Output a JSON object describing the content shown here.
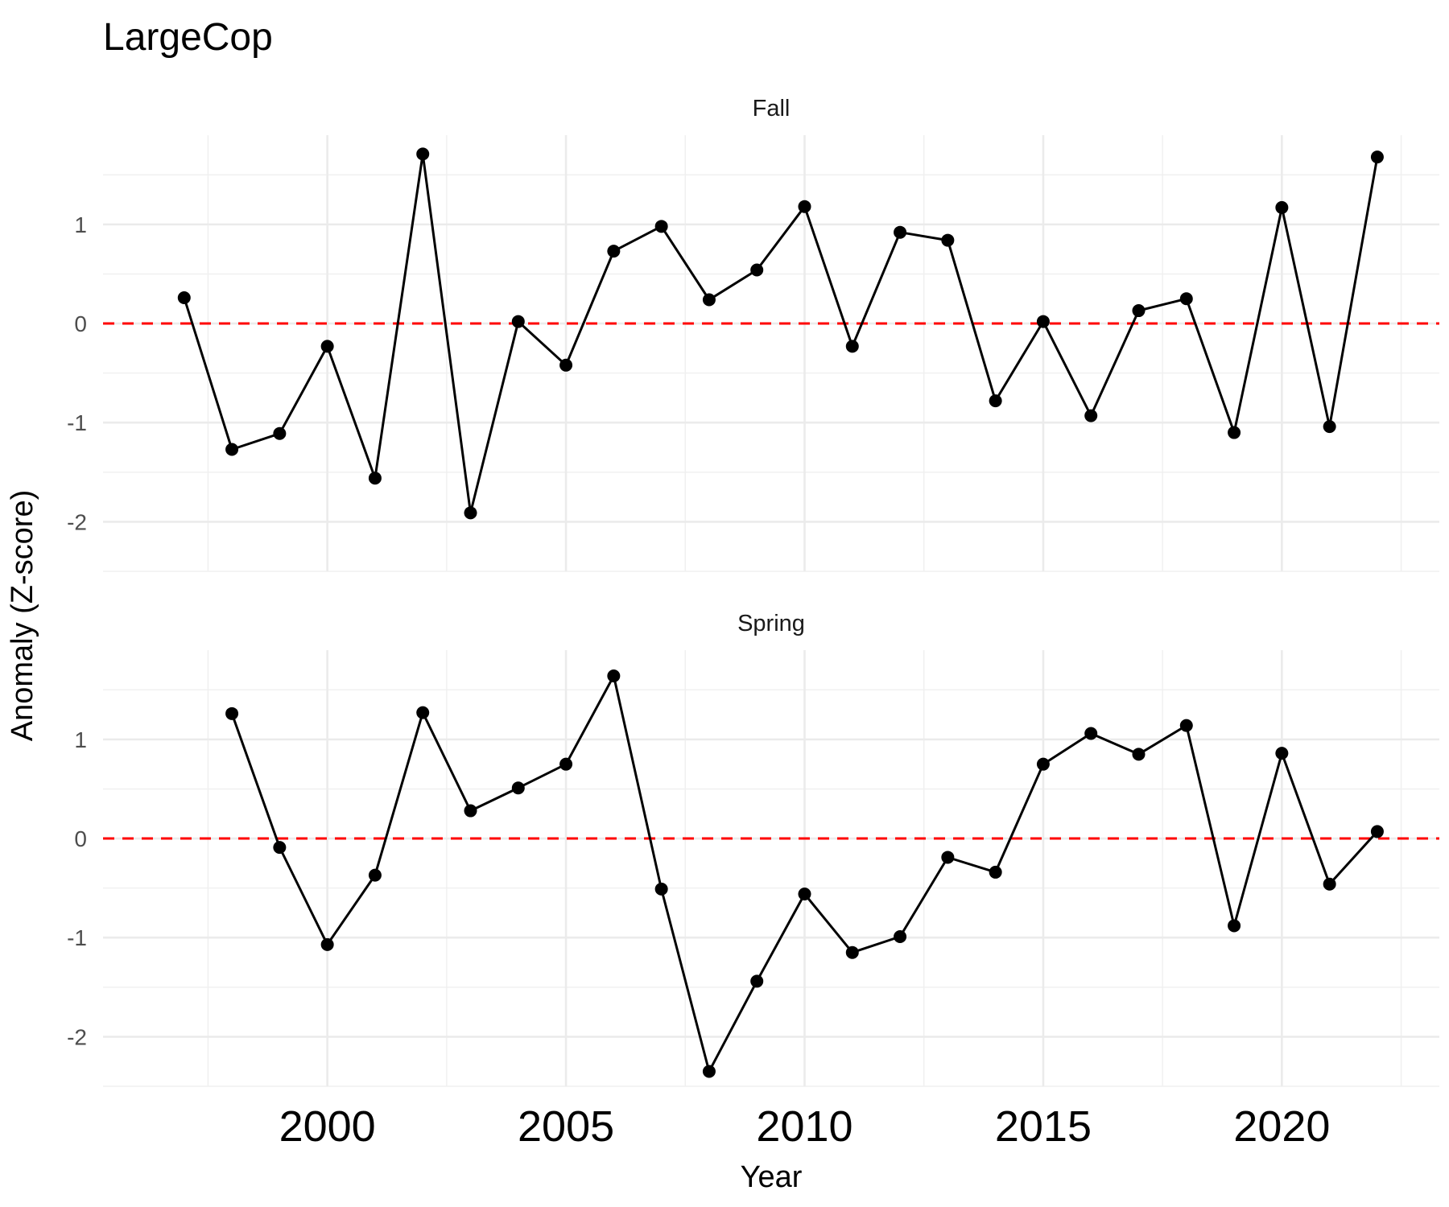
{
  "chart_data": {
    "type": "line",
    "title": "LargeCop",
    "xlabel": "Year",
    "ylabel": "Anomaly (Z-score)",
    "xlim": [
      1995.3,
      2023.3
    ],
    "ylim": [
      -2.5,
      1.9
    ],
    "x_ticks": [
      2000,
      2005,
      2010,
      2015,
      2020
    ],
    "x_tick_labels": [
      "2000",
      "2005",
      "2010",
      "2015",
      "2020"
    ],
    "y_ticks": [
      -2,
      -1,
      0,
      1
    ],
    "y_tick_labels": [
      "-2",
      "-1",
      "0",
      "1"
    ],
    "reference_line": {
      "y": 0,
      "color": "#ff0000",
      "style": "dashed"
    },
    "line_color": "#000000",
    "grid": true,
    "panels": [
      {
        "name": "Fall",
        "x": [
          1997,
          1998,
          1999,
          2000,
          2001,
          2002,
          2003,
          2004,
          2005,
          2006,
          2007,
          2008,
          2009,
          2010,
          2011,
          2012,
          2013,
          2014,
          2015,
          2016,
          2017,
          2018,
          2019,
          2020,
          2021,
          2022
        ],
        "y": [
          0.26,
          -1.27,
          -1.11,
          -0.23,
          -1.56,
          1.71,
          -1.91,
          0.02,
          -0.42,
          0.73,
          0.98,
          0.24,
          0.54,
          1.18,
          -0.23,
          0.92,
          0.84,
          -0.78,
          0.02,
          -0.93,
          0.13,
          0.25,
          -1.1,
          1.17,
          -1.04,
          1.68
        ]
      },
      {
        "name": "Spring",
        "x": [
          1998,
          1999,
          2000,
          2001,
          2002,
          2003,
          2004,
          2005,
          2006,
          2007,
          2008,
          2009,
          2010,
          2011,
          2012,
          2013,
          2014,
          2015,
          2016,
          2017,
          2018,
          2019,
          2020,
          2021,
          2022
        ],
        "y": [
          1.26,
          -0.09,
          -1.07,
          -0.37,
          1.27,
          0.28,
          0.51,
          0.75,
          1.64,
          -0.51,
          -2.35,
          -1.44,
          -0.56,
          -1.15,
          -0.99,
          -0.19,
          -0.34,
          0.75,
          1.06,
          0.85,
          1.14,
          -0.88,
          0.86,
          -0.46,
          0.07
        ]
      }
    ]
  }
}
